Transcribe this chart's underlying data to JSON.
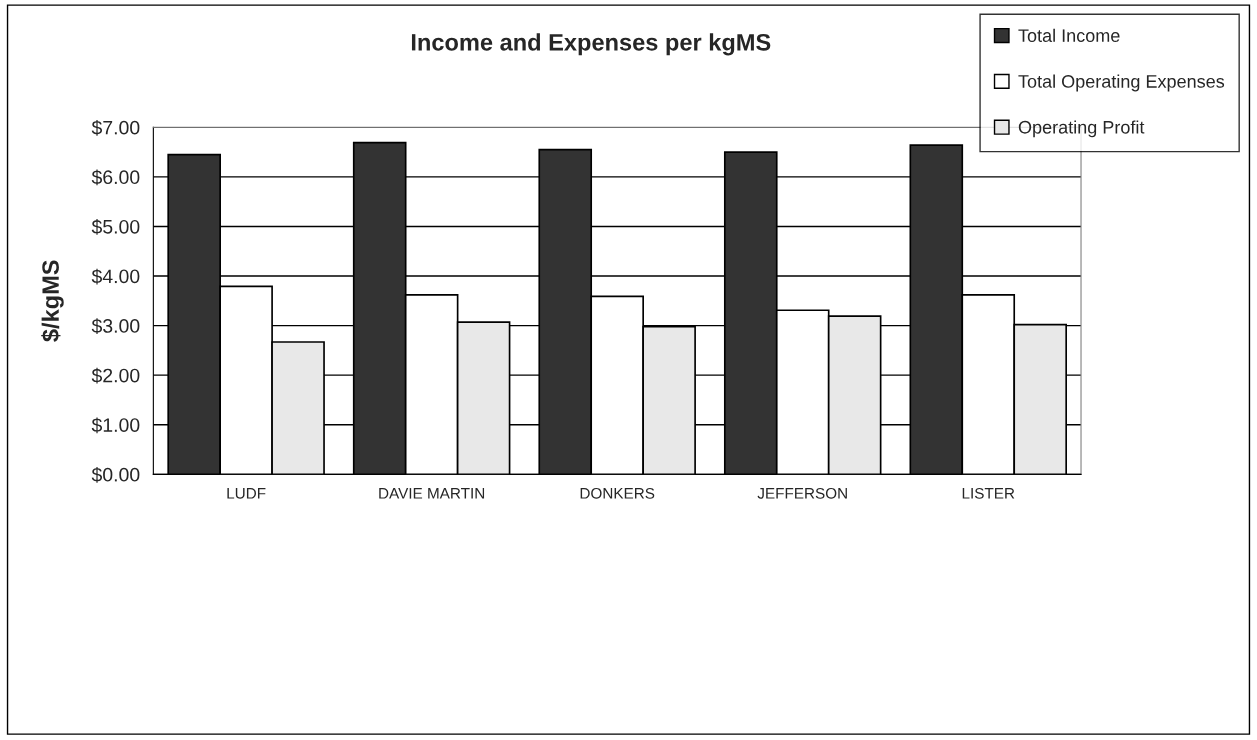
{
  "chart_data": {
    "type": "bar",
    "title": "Income and Expenses per kgMS",
    "ylabel": "$/kgMS",
    "categories": [
      "LUDF",
      "DAVIE MARTIN",
      "DONKERS",
      "JEFFERSON",
      "LISTER"
    ],
    "series": [
      {
        "name": "Total Income",
        "color": "#333333",
        "values": [
          6.45,
          6.69,
          6.55,
          6.5,
          6.64
        ]
      },
      {
        "name": "Total Operating Expenses",
        "color": "#ffffff",
        "values": [
          3.79,
          3.62,
          3.59,
          3.31,
          3.62
        ]
      },
      {
        "name": "Operating Profit",
        "color": "#e8e8e8",
        "values": [
          2.67,
          3.07,
          2.98,
          3.19,
          3.02
        ]
      }
    ],
    "ylim": [
      0,
      7
    ],
    "yticks": [
      {
        "value": 0,
        "label": "$0.00"
      },
      {
        "value": 1,
        "label": "$1.00"
      },
      {
        "value": 2,
        "label": "$2.00"
      },
      {
        "value": 3,
        "label": "$3.00"
      },
      {
        "value": 4,
        "label": "$4.00"
      },
      {
        "value": 5,
        "label": "$5.00"
      },
      {
        "value": 6,
        "label": "$6.00"
      },
      {
        "value": 7,
        "label": "$7.00"
      }
    ],
    "grid": "y",
    "legend": "top right"
  }
}
